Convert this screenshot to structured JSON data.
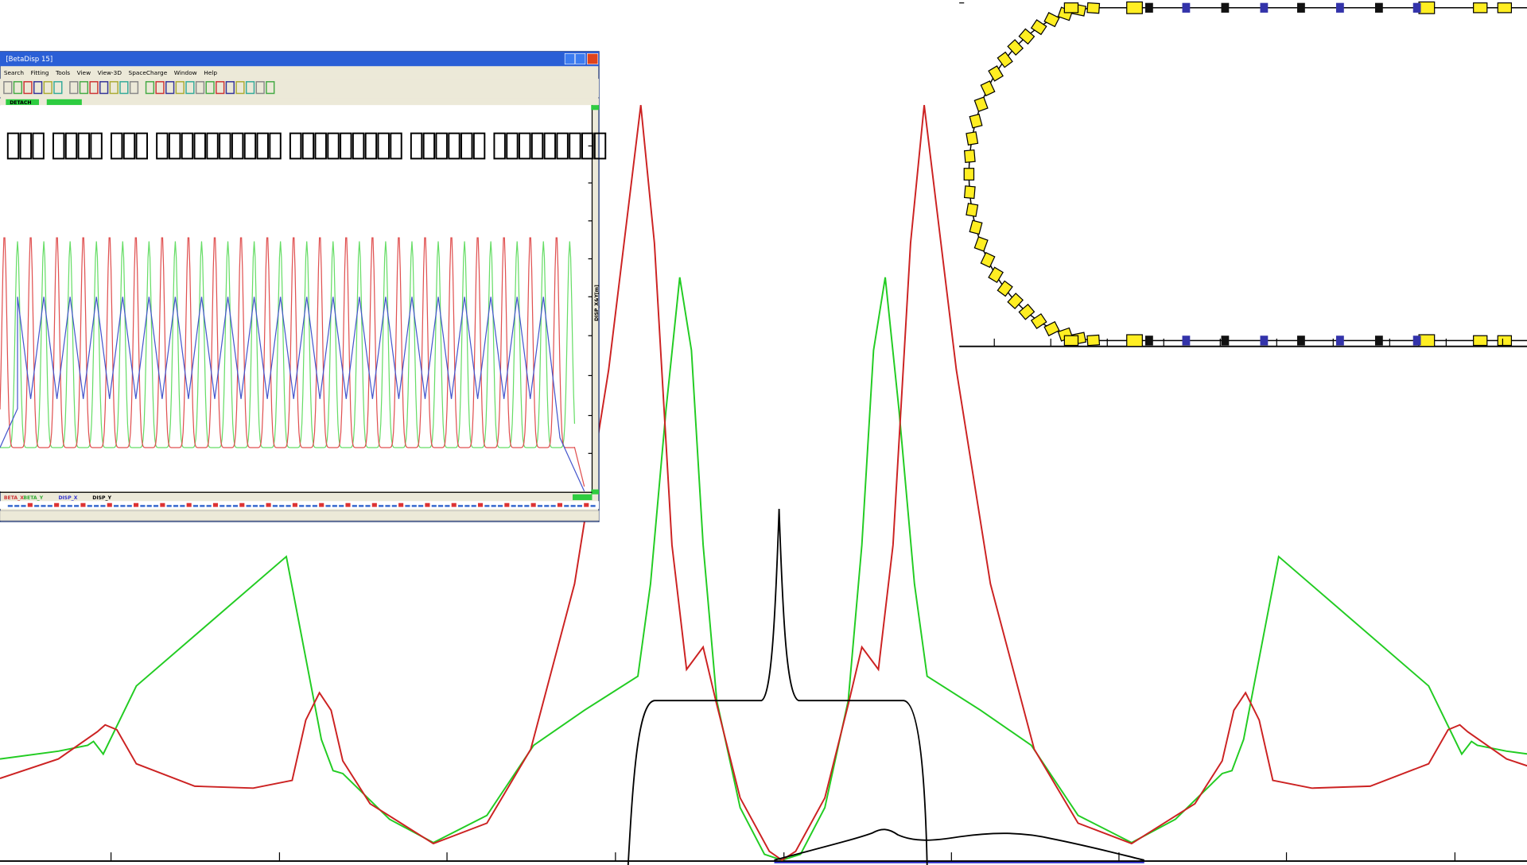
{
  "window": {
    "title": "[BetaDisp 15]",
    "menu": [
      "Search",
      "Fitting",
      "Tools",
      "View",
      "View-3D",
      "SpaceCharge",
      "Window",
      "Help"
    ],
    "detach_button": "DETACH",
    "y_axis_label": "DISP_X&Y[m]",
    "legend": [
      "BETA_X",
      "BETA_Y",
      "DISP_X",
      "DISP_Y"
    ]
  }
}
